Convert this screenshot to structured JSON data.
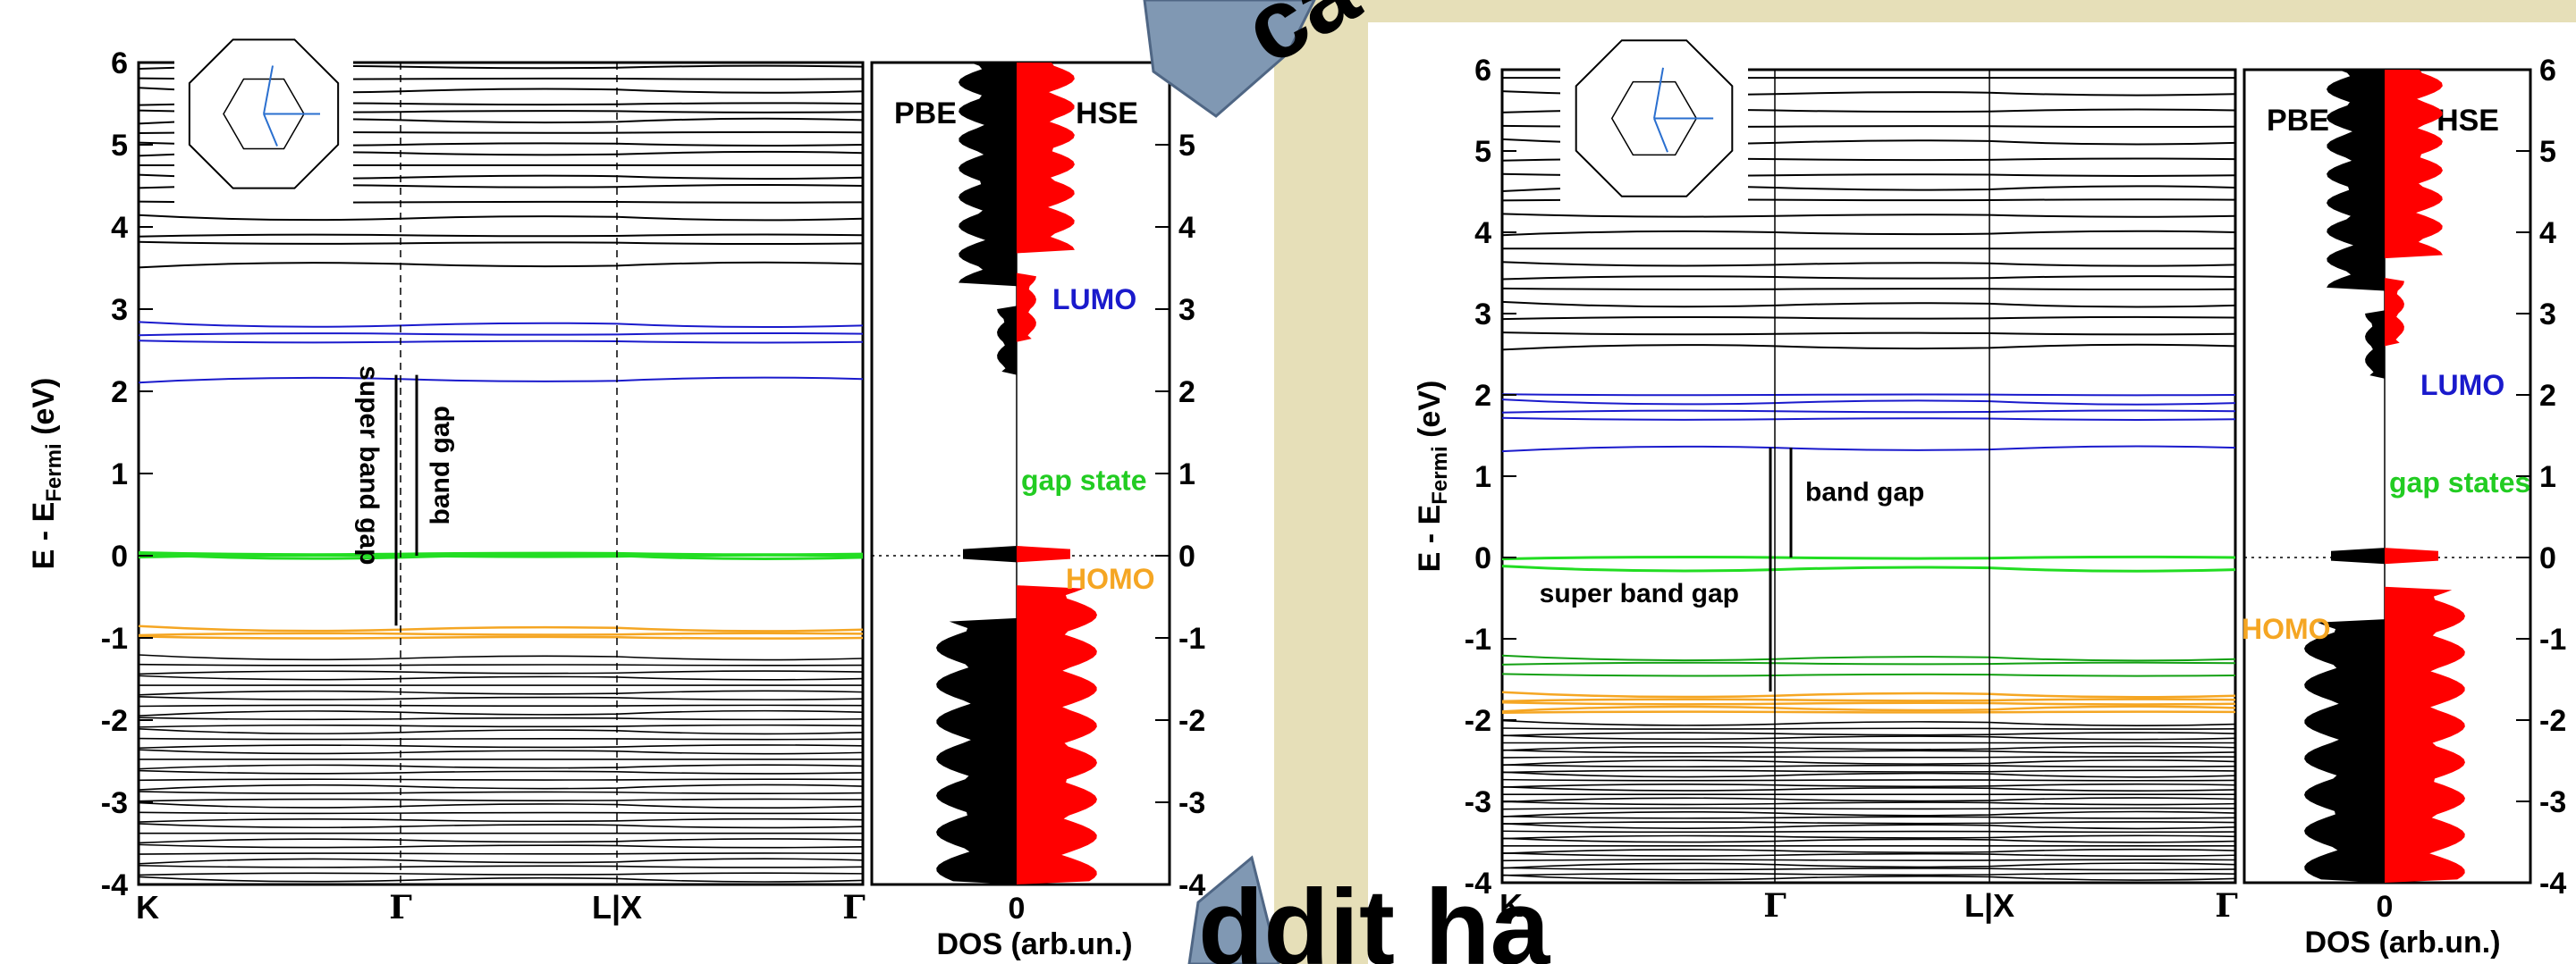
{
  "overlay_text": {
    "top": "ca",
    "bottom": "ddit ha"
  },
  "colors": {
    "background_band": "#e6dfb8",
    "panel_bg": "#ffffff",
    "arrow_fill": "#8098b3",
    "band_black": "#000000",
    "band_blue": "#1a1acc",
    "band_green": "#22dd22",
    "band_dark_green": "#13a013",
    "band_orange": "#f5a623",
    "dos_pbe": "#000000",
    "dos_hse": "#ff0000",
    "lumo_text": "#1a1acc",
    "gap_text": "#22cc22",
    "homo_text": "#f5a623"
  },
  "chart_data": [
    {
      "type": "line",
      "chart_kind": "band structure with density of states",
      "ylabel": "E - E",
      "ylabel_sub": "Fermi",
      "ylabel_unit": " (eV)",
      "ylim": [
        -4,
        6
      ],
      "yticks": [
        "-4",
        "-3",
        "-2",
        "-1",
        "0",
        "1",
        "2",
        "3",
        "4",
        "5",
        "6"
      ],
      "kpath": [
        "K",
        "Γ",
        "L|X",
        "Γ"
      ],
      "dos_xlabel": "DOS (arb.un.)",
      "dos_zero_label": "0",
      "dos_series": [
        "PBE",
        "HSE"
      ],
      "annotations": [
        "LUMO",
        "gap state",
        "HOMO",
        "band gap",
        "super band gap"
      ],
      "band_gap": {
        "from_eV": 0.0,
        "to_eV": 2.2
      },
      "super_band_gap": {
        "from_eV": -0.85,
        "to_eV": 2.2
      },
      "bands": {
        "conduction_black_eV": [
          3.55,
          3.8,
          3.9,
          4.1,
          4.3,
          4.5,
          4.6,
          4.75,
          4.9,
          5.0,
          5.15,
          5.3,
          5.4,
          5.5,
          5.65,
          5.8,
          5.95
        ],
        "lumo_blue_eV": [
          2.15,
          2.6,
          2.7,
          2.8
        ],
        "gap_green_eV": [
          -0.02,
          0.0,
          0.02
        ],
        "homo_orange_eV": [
          -0.9,
          -0.95,
          -1.0
        ],
        "valence_black_range_eV": [
          -4.0,
          -1.2
        ]
      }
    },
    {
      "type": "line",
      "chart_kind": "band structure with density of states",
      "ylabel": "E - E",
      "ylabel_sub": "Fermi",
      "ylabel_unit": " (eV)",
      "ylim": [
        -4,
        6
      ],
      "yticks": [
        "-4",
        "-3",
        "-2",
        "-1",
        "0",
        "1",
        "2",
        "3",
        "4",
        "5",
        "6"
      ],
      "kpath": [
        "K",
        "Γ",
        "L|X",
        "Γ"
      ],
      "dos_xlabel": "DOS (arb.un.)",
      "dos_zero_label": "0",
      "dos_series": [
        "PBE",
        "HSE"
      ],
      "annotations": [
        "LUMO",
        "gap states",
        "HOMO",
        "band gap",
        "super band gap"
      ],
      "band_gap": {
        "from_eV": 0.0,
        "to_eV": 1.35
      },
      "super_band_gap": {
        "from_eV": -1.65,
        "to_eV": 1.35
      },
      "bands": {
        "conduction_black_eV": [
          2.6,
          2.75,
          2.95,
          3.1,
          3.3,
          3.45,
          3.6,
          3.8,
          4.0,
          4.2,
          4.4,
          4.55,
          4.7,
          4.9,
          5.1,
          5.3,
          5.5,
          5.7,
          5.9
        ],
        "lumo_blue_eV": [
          1.35,
          1.7,
          1.8,
          1.9,
          2.0
        ],
        "gap_green_eV": [
          -0.15,
          0.0
        ],
        "gap_dark_green_eV": [
          -1.25,
          -1.3,
          -1.45
        ],
        "homo_orange_eV": [
          -1.7,
          -1.75,
          -1.8,
          -1.85,
          -1.9
        ],
        "valence_black_range_eV": [
          -4.0,
          -2.0
        ]
      }
    }
  ]
}
